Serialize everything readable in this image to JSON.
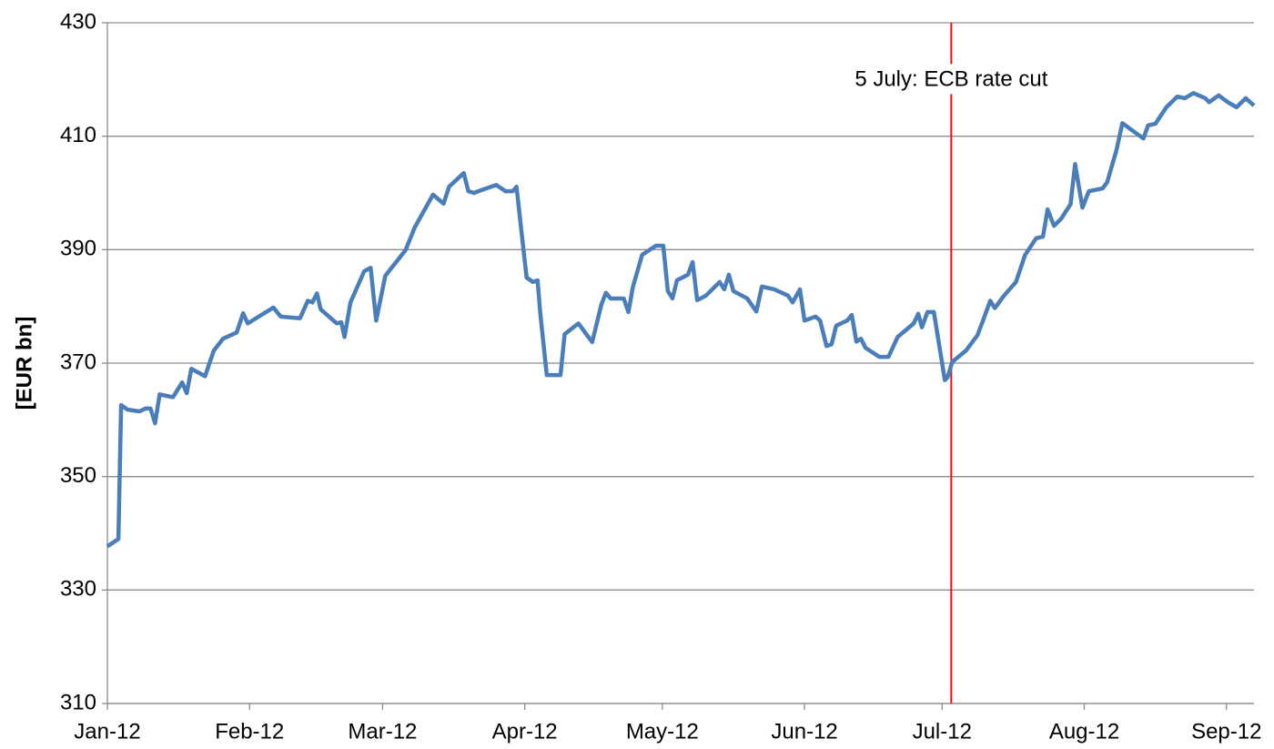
{
  "chart_data": {
    "type": "line",
    "ylabel": "[EUR bn]",
    "x": [
      0,
      2.4,
      3,
      4.4,
      7,
      8.3,
      9.4,
      10.4,
      11.4,
      14.3,
      16.3,
      17.3,
      18.3,
      21.3,
      23.2,
      25.2,
      28.2,
      29.6,
      30.6,
      33.2,
      36.2,
      37.8,
      42,
      43.7,
      44.7,
      45.7,
      46.5,
      50,
      51,
      51.7,
      53,
      56,
      57.4,
      58.6,
      60.6,
      65,
      67,
      71,
      73.3,
      74.5,
      77.7,
      78.7,
      79.9,
      81.9,
      84.8,
      86.8,
      88.4,
      89.2,
      91.4,
      92.8,
      93.8,
      94.4,
      95.8,
      98.8,
      99.7,
      102.7,
      105.7,
      107.7,
      108.7,
      109.7,
      112.6,
      113.6,
      114.6,
      116.6,
      119.6,
      121.2,
      122.2,
      123.2,
      124.2,
      126.6,
      127.6,
      128.6,
      130.5,
      133.5,
      134.5,
      135.5,
      136.5,
      139.5,
      141.5,
      142.7,
      145.4,
      148.4,
      149.4,
      151,
      152,
      154.4,
      155.4,
      156.8,
      157.9,
      158.9,
      161.3,
      162.3,
      163.3,
      164.3,
      165.3,
      168.3,
      170.3,
      172.3,
      174.2,
      175.8,
      176.8,
      177.6,
      178.8,
      180.2,
      182.6,
      183.2,
      184.2,
      187.2,
      189.7,
      191.1,
      192.5,
      193.5,
      195.5,
      198.1,
      200.1,
      202.5,
      204,
      205,
      206.4,
      208,
      210,
      211,
      212.6,
      214,
      217,
      218,
      220,
      221.3,
      223.5,
      225.9,
      226.9,
      228.5,
      230.9,
      233.3,
      234.9,
      236.8,
      239.4,
      240.2,
      242.3,
      244.3,
      246.2,
      248.2,
      250
    ],
    "series": [
      {
        "name": "EUR bn",
        "color": "#4a7ebb",
        "values": [
          337.7,
          339,
          362.6,
          361.8,
          361.5,
          362,
          362,
          359.4,
          364.5,
          364,
          366.6,
          364.7,
          369,
          367.7,
          372.2,
          374.3,
          375.4,
          378.8,
          377,
          378.3,
          379.8,
          378.2,
          377.9,
          381,
          380.7,
          382.3,
          379.5,
          377,
          377.2,
          374.6,
          380.7,
          386.2,
          386.8,
          377.5,
          385.4,
          389.9,
          393.9,
          399.7,
          398.1,
          401.1,
          403.5,
          400.3,
          400,
          400.6,
          401.4,
          400.3,
          400.3,
          401.1,
          385.1,
          384.3,
          384.6,
          378.7,
          367.9,
          367.9,
          375.1,
          377,
          373.7,
          380.3,
          382.4,
          381.4,
          381.4,
          379,
          383.5,
          389.1,
          390.7,
          390.7,
          382.7,
          381.4,
          384.6,
          385.6,
          387.8,
          381.1,
          381.9,
          384.3,
          383,
          385.6,
          382.7,
          381.4,
          379.1,
          383.5,
          383,
          381.9,
          380.7,
          383,
          377.5,
          378.2,
          377.5,
          373,
          373.3,
          376.6,
          377.5,
          378.5,
          373.8,
          374.3,
          372.7,
          371.1,
          371.1,
          374.6,
          375.9,
          377,
          378.7,
          376.3,
          379,
          379,
          367,
          367.5,
          370.2,
          372.2,
          374.9,
          377.9,
          381,
          379.7,
          381.9,
          384.3,
          389.1,
          392,
          392.3,
          397.1,
          394.2,
          395.5,
          398,
          405.1,
          397.4,
          400.3,
          400.8,
          401.9,
          407.5,
          412.3,
          411,
          409.6,
          411.9,
          412.2,
          415.1,
          417,
          416.7,
          417.6,
          416.7,
          416,
          417.2,
          416,
          415.1,
          416.7,
          415.4
        ]
      }
    ],
    "xlim": [
      0,
      250
    ],
    "xticks": [
      {
        "value": 0,
        "label": "Jan-12"
      },
      {
        "value": 31,
        "label": "Feb-12"
      },
      {
        "value": 60,
        "label": "Mar-12"
      },
      {
        "value": 91,
        "label": "Apr-12"
      },
      {
        "value": 121,
        "label": "May-12"
      },
      {
        "value": 152,
        "label": "Jun-12"
      },
      {
        "value": 182,
        "label": "Jul-12"
      },
      {
        "value": 213,
        "label": "Aug-12"
      },
      {
        "value": 244,
        "label": "Sep-12"
      }
    ],
    "ylim": [
      310,
      430
    ],
    "yticks": [
      310,
      330,
      350,
      370,
      390,
      410,
      430
    ],
    "grid": true,
    "annotation": {
      "text": "5 July: ECB rate cut",
      "x": 184,
      "color": "#e8101a"
    }
  }
}
